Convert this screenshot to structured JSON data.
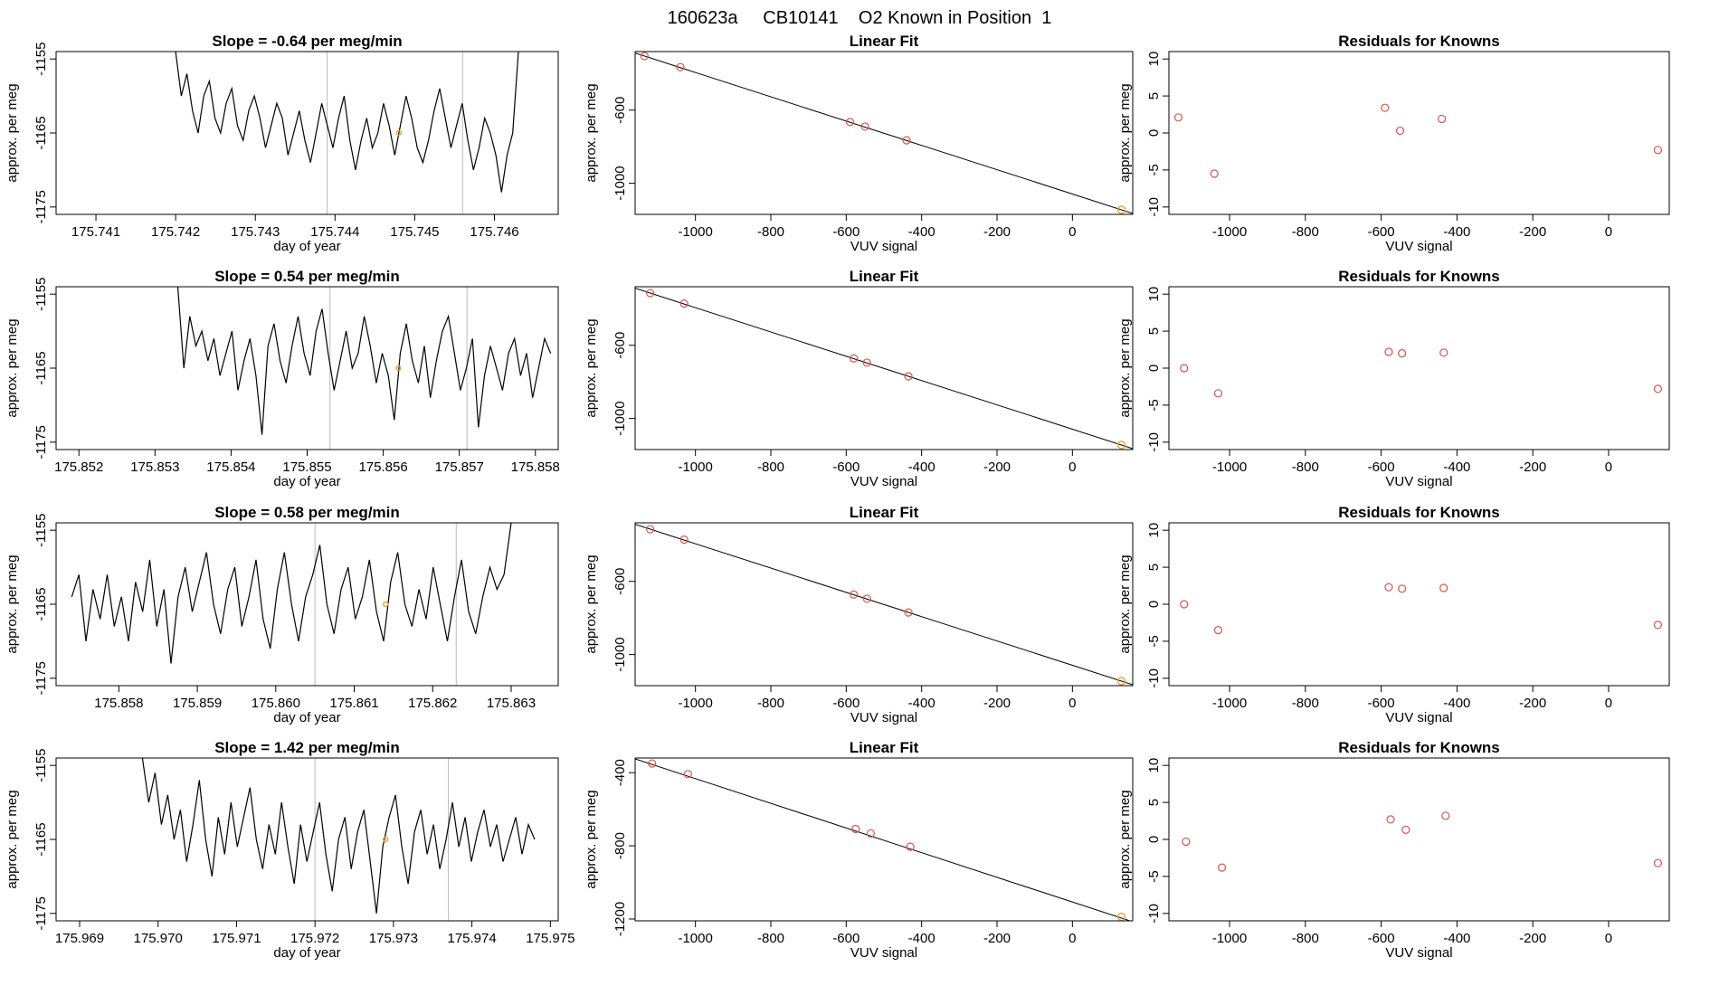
{
  "page_title": "160623a     CB10141    O2 Known in Position  1",
  "colors": {
    "trace": "#000000",
    "marker": "#d9534f",
    "highlight": "#f0a030",
    "guide": "#bbbbbb"
  },
  "chart_data": [
    {
      "type": "line",
      "row": 1,
      "col": 1,
      "title": "Slope =  -0.64  per meg/min",
      "xlabel": "day of year",
      "ylabel": "approx. per meg",
      "xlim": [
        175.7405,
        175.7468
      ],
      "ylim": [
        -1176,
        -1154
      ],
      "xticks": [
        175.741,
        175.742,
        175.743,
        175.744,
        175.745,
        175.746
      ],
      "xtick_labels": [
        "175.741",
        "175.742",
        "175.743",
        "175.744",
        "175.745",
        "175.746"
      ],
      "yticks": [
        -1155,
        -1165,
        -1175
      ],
      "ytick_labels": [
        "-1155",
        "-1165",
        "-1175"
      ],
      "vlines": [
        175.7439,
        175.7456
      ],
      "series": [
        {
          "name": "trace",
          "start": 175.742,
          "end": 175.7463,
          "values": [
            -1154,
            -1160,
            -1157,
            -1162,
            -1165,
            -1160,
            -1158,
            -1163,
            -1165,
            -1161,
            -1159,
            -1164,
            -1166,
            -1162,
            -1160,
            -1163,
            -1167,
            -1164,
            -1161,
            -1163,
            -1168,
            -1165,
            -1162,
            -1166,
            -1169,
            -1165,
            -1161,
            -1164,
            -1167,
            -1163,
            -1160,
            -1166,
            -1170,
            -1166,
            -1163,
            -1167,
            -1165,
            -1161,
            -1164,
            -1168,
            -1164,
            -1160,
            -1163,
            -1167,
            -1169,
            -1166,
            -1162,
            -1159,
            -1163,
            -1167,
            -1164,
            -1161,
            -1166,
            -1170,
            -1167,
            -1163,
            -1165,
            -1168,
            -1173,
            -1168,
            -1165,
            -1154
          ]
        }
      ],
      "highlight_points": [
        {
          "x": 175.7448,
          "y": -1165
        }
      ]
    },
    {
      "type": "scatter",
      "row": 1,
      "col": 2,
      "title": "Linear Fit",
      "xlabel": "VUV signal",
      "ylabel": "approx. per meg",
      "xlim": [
        -1160,
        160
      ],
      "ylim": [
        -1170,
        -280
      ],
      "xticks": [
        -1000,
        -800,
        -600,
        -400,
        -200,
        0
      ],
      "xtick_labels": [
        "-1000",
        "-800",
        "-600",
        "-400",
        "-200",
        "0"
      ],
      "yticks": [
        -600,
        -1000
      ],
      "ytick_labels": [
        "-600",
        "-1000"
      ],
      "fit_line": {
        "x": [
          -1160,
          160
        ],
        "y": [
          -288,
          -1165
        ]
      },
      "points": [
        {
          "x": -1135,
          "y": -305
        },
        {
          "x": -1040,
          "y": -365
        },
        {
          "x": -590,
          "y": -665
        },
        {
          "x": -550,
          "y": -690
        },
        {
          "x": -440,
          "y": -765
        }
      ],
      "highlight_points": [
        {
          "x": 130,
          "y": -1145
        }
      ]
    },
    {
      "type": "scatter",
      "row": 1,
      "col": 3,
      "title": "Residuals for Knowns",
      "xlabel": "VUV signal",
      "ylabel": "approx. per meg",
      "xlim": [
        -1160,
        160
      ],
      "ylim": [
        -11,
        11
      ],
      "xticks": [
        -1000,
        -800,
        -600,
        -400,
        -200,
        0
      ],
      "xtick_labels": [
        "-1000",
        "-800",
        "-600",
        "-400",
        "-200",
        "0"
      ],
      "yticks": [
        10,
        5,
        0,
        -5,
        -10
      ],
      "ytick_labels": [
        "10",
        "5",
        "0",
        "-5",
        "-10"
      ],
      "points": [
        {
          "x": -1135,
          "y": 2.1
        },
        {
          "x": -1040,
          "y": -5.5
        },
        {
          "x": -590,
          "y": 3.4
        },
        {
          "x": -550,
          "y": 0.3
        },
        {
          "x": -440,
          "y": 1.9
        },
        {
          "x": 130,
          "y": -2.3
        }
      ]
    },
    {
      "type": "line",
      "row": 2,
      "col": 1,
      "title": "Slope =  0.54  per meg/min",
      "xlabel": "day of year",
      "ylabel": "approx. per meg",
      "xlim": [
        175.8517,
        175.8583
      ],
      "ylim": [
        -1176,
        -1154
      ],
      "xticks": [
        175.852,
        175.853,
        175.854,
        175.855,
        175.856,
        175.857,
        175.858
      ],
      "xtick_labels": [
        "175.852",
        "175.853",
        "175.854",
        "175.855",
        "175.856",
        "175.857",
        "175.858"
      ],
      "yticks": [
        -1155,
        -1165,
        -1175
      ],
      "ytick_labels": [
        "-1155",
        "-1165",
        "-1175"
      ],
      "vlines": [
        175.8553,
        175.8571
      ],
      "series": [
        {
          "name": "trace",
          "start": 175.8533,
          "end": 175.8582,
          "values": [
            -1154,
            -1165,
            -1158,
            -1162,
            -1160,
            -1164,
            -1161,
            -1166,
            -1163,
            -1160,
            -1168,
            -1164,
            -1161,
            -1166,
            -1174,
            -1162,
            -1159,
            -1164,
            -1167,
            -1162,
            -1158,
            -1163,
            -1166,
            -1160,
            -1157,
            -1163,
            -1168,
            -1164,
            -1160,
            -1165,
            -1163,
            -1158,
            -1162,
            -1167,
            -1163,
            -1166,
            -1172,
            -1163,
            -1159,
            -1164,
            -1167,
            -1162,
            -1169,
            -1164,
            -1160,
            -1158,
            -1163,
            -1168,
            -1165,
            -1161,
            -1173,
            -1166,
            -1162,
            -1165,
            -1168,
            -1163,
            -1161,
            -1166,
            -1163,
            -1169,
            -1165,
            -1161,
            -1163
          ]
        }
      ],
      "highlight_points": [
        {
          "x": 175.8562,
          "y": -1165
        }
      ]
    },
    {
      "type": "scatter",
      "row": 2,
      "col": 2,
      "title": "Linear Fit",
      "xlabel": "VUV signal",
      "ylabel": "approx. per meg",
      "xlim": [
        -1160,
        160
      ],
      "ylim": [
        -1170,
        -280
      ],
      "xticks": [
        -1000,
        -800,
        -600,
        -400,
        -200,
        0
      ],
      "xtick_labels": [
        "-1000",
        "-800",
        "-600",
        "-400",
        "-200",
        "0"
      ],
      "yticks": [
        -600,
        -1000
      ],
      "ytick_labels": [
        "-600",
        "-1000"
      ],
      "fit_line": {
        "x": [
          -1160,
          160
        ],
        "y": [
          -288,
          -1165
        ]
      },
      "points": [
        {
          "x": -1120,
          "y": -315
        },
        {
          "x": -1030,
          "y": -372
        },
        {
          "x": -580,
          "y": -672
        },
        {
          "x": -545,
          "y": -695
        },
        {
          "x": -435,
          "y": -770
        }
      ],
      "highlight_points": [
        {
          "x": 130,
          "y": -1145
        }
      ]
    },
    {
      "type": "scatter",
      "row": 2,
      "col": 3,
      "title": "Residuals for Knowns",
      "xlabel": "VUV signal",
      "ylabel": "approx. per meg",
      "xlim": [
        -1160,
        160
      ],
      "ylim": [
        -11,
        11
      ],
      "xticks": [
        -1000,
        -800,
        -600,
        -400,
        -200,
        0
      ],
      "xtick_labels": [
        "-1000",
        "-800",
        "-600",
        "-400",
        "-200",
        "0"
      ],
      "yticks": [
        10,
        5,
        0,
        -5,
        -10
      ],
      "ytick_labels": [
        "10",
        "5",
        "0",
        "-5",
        "-10"
      ],
      "points": [
        {
          "x": -1120,
          "y": 0.0
        },
        {
          "x": -1030,
          "y": -3.4
        },
        {
          "x": -580,
          "y": 2.2
        },
        {
          "x": -545,
          "y": 2.0
        },
        {
          "x": -435,
          "y": 2.1
        },
        {
          "x": 130,
          "y": -2.8
        }
      ]
    },
    {
      "type": "line",
      "row": 3,
      "col": 1,
      "title": "Slope =  0.58  per meg/min",
      "xlabel": "day of year",
      "ylabel": "approx. per meg",
      "xlim": [
        175.8572,
        175.8636
      ],
      "ylim": [
        -1176,
        -1154
      ],
      "xticks": [
        175.858,
        175.859,
        175.86,
        175.861,
        175.862,
        175.863
      ],
      "xtick_labels": [
        "175.858",
        "175.859",
        "175.860",
        "175.861",
        "175.862",
        "175.863"
      ],
      "yticks": [
        -1155,
        -1165,
        -1175
      ],
      "ytick_labels": [
        "-1155",
        "-1165",
        "-1175"
      ],
      "vlines": [
        175.8605,
        175.8623
      ],
      "series": [
        {
          "name": "trace",
          "start": 175.8574,
          "end": 175.863,
          "values": [
            -1164,
            -1161,
            -1170,
            -1163,
            -1167,
            -1161,
            -1168,
            -1164,
            -1170,
            -1162,
            -1166,
            -1159,
            -1168,
            -1163,
            -1173,
            -1164,
            -1160,
            -1166,
            -1162,
            -1158,
            -1165,
            -1169,
            -1163,
            -1160,
            -1168,
            -1164,
            -1159,
            -1167,
            -1171,
            -1163,
            -1158,
            -1165,
            -1170,
            -1164,
            -1161,
            -1157,
            -1165,
            -1169,
            -1163,
            -1160,
            -1167,
            -1164,
            -1159,
            -1166,
            -1170,
            -1162,
            -1158,
            -1165,
            -1168,
            -1163,
            -1167,
            -1160,
            -1165,
            -1170,
            -1164,
            -1159,
            -1166,
            -1169,
            -1164,
            -1160,
            -1163,
            -1161,
            -1154
          ]
        }
      ],
      "highlight_points": [
        {
          "x": 175.8614,
          "y": -1165
        }
      ]
    },
    {
      "type": "scatter",
      "row": 3,
      "col": 2,
      "title": "Linear Fit",
      "xlabel": "VUV signal",
      "ylabel": "approx. per meg",
      "xlim": [
        -1160,
        160
      ],
      "ylim": [
        -1170,
        -280
      ],
      "xticks": [
        -1000,
        -800,
        -600,
        -400,
        -200,
        0
      ],
      "xtick_labels": [
        "-1000",
        "-800",
        "-600",
        "-400",
        "-200",
        "0"
      ],
      "yticks": [
        -600,
        -1000
      ],
      "ytick_labels": [
        "-600",
        "-1000"
      ],
      "fit_line": {
        "x": [
          -1160,
          160
        ],
        "y": [
          -288,
          -1165
        ]
      },
      "points": [
        {
          "x": -1120,
          "y": -315
        },
        {
          "x": -1030,
          "y": -372
        },
        {
          "x": -580,
          "y": -672
        },
        {
          "x": -545,
          "y": -695
        },
        {
          "x": -435,
          "y": -770
        }
      ],
      "highlight_points": [
        {
          "x": 130,
          "y": -1145
        }
      ]
    },
    {
      "type": "scatter",
      "row": 3,
      "col": 3,
      "title": "Residuals for Knowns",
      "xlabel": "VUV signal",
      "ylabel": "approx. per meg",
      "xlim": [
        -1160,
        160
      ],
      "ylim": [
        -11,
        11
      ],
      "xticks": [
        -1000,
        -800,
        -600,
        -400,
        -200,
        0
      ],
      "xtick_labels": [
        "-1000",
        "-800",
        "-600",
        "-400",
        "-200",
        "0"
      ],
      "yticks": [
        10,
        5,
        0,
        -5,
        -10
      ],
      "ytick_labels": [
        "10",
        "5",
        "0",
        "-5",
        "-10"
      ],
      "points": [
        {
          "x": -1120,
          "y": 0.0
        },
        {
          "x": -1030,
          "y": -3.5
        },
        {
          "x": -580,
          "y": 2.3
        },
        {
          "x": -545,
          "y": 2.1
        },
        {
          "x": -435,
          "y": 2.2
        },
        {
          "x": 130,
          "y": -2.8
        }
      ]
    },
    {
      "type": "line",
      "row": 4,
      "col": 1,
      "title": "Slope =  1.42  per meg/min",
      "xlabel": "day of year",
      "ylabel": "approx. per meg",
      "xlim": [
        175.9687,
        175.9751
      ],
      "ylim": [
        -1176,
        -1154
      ],
      "xticks": [
        175.969,
        175.97,
        175.971,
        175.972,
        175.973,
        175.974,
        175.975
      ],
      "xtick_labels": [
        "175.969",
        "175.970",
        "175.971",
        "175.972",
        "175.973",
        "175.974",
        "175.975"
      ],
      "yticks": [
        -1155,
        -1165,
        -1175
      ],
      "ytick_labels": [
        "-1155",
        "-1165",
        "-1175"
      ],
      "vlines": [
        175.972,
        175.9737
      ],
      "series": [
        {
          "name": "trace",
          "start": 175.9698,
          "end": 175.9748,
          "values": [
            -1154,
            -1160,
            -1156,
            -1163,
            -1159,
            -1165,
            -1161,
            -1168,
            -1163,
            -1157,
            -1165,
            -1170,
            -1162,
            -1167,
            -1160,
            -1166,
            -1162,
            -1158,
            -1165,
            -1169,
            -1163,
            -1167,
            -1160,
            -1166,
            -1171,
            -1163,
            -1168,
            -1164,
            -1160,
            -1167,
            -1172,
            -1165,
            -1162,
            -1169,
            -1164,
            -1161,
            -1168,
            -1175,
            -1166,
            -1162,
            -1159,
            -1166,
            -1171,
            -1164,
            -1161,
            -1167,
            -1163,
            -1169,
            -1165,
            -1160,
            -1166,
            -1162,
            -1168,
            -1164,
            -1161,
            -1166,
            -1163,
            -1168,
            -1165,
            -1162,
            -1167,
            -1163,
            -1165
          ]
        }
      ],
      "highlight_points": [
        {
          "x": 175.9729,
          "y": -1165
        }
      ]
    },
    {
      "type": "scatter",
      "row": 4,
      "col": 2,
      "title": "Linear Fit",
      "xlabel": "VUV signal",
      "ylabel": "approx. per meg",
      "xlim": [
        -1160,
        160
      ],
      "ylim": [
        -1210,
        -320
      ],
      "xticks": [
        -1000,
        -800,
        -600,
        -400,
        -200,
        0
      ],
      "xtick_labels": [
        "-1000",
        "-800",
        "-600",
        "-400",
        "-200",
        "0"
      ],
      "yticks": [
        -400,
        -800,
        -1200
      ],
      "ytick_labels": [
        "-400",
        "-800",
        "-1200"
      ],
      "fit_line": {
        "x": [
          -1160,
          160
        ],
        "y": [
          -325,
          -1215
        ]
      },
      "points": [
        {
          "x": -1115,
          "y": -350
        },
        {
          "x": -1020,
          "y": -408
        },
        {
          "x": -575,
          "y": -708
        },
        {
          "x": -535,
          "y": -732
        },
        {
          "x": -430,
          "y": -805
        }
      ],
      "highlight_points": [
        {
          "x": 130,
          "y": -1188
        }
      ]
    },
    {
      "type": "scatter",
      "row": 4,
      "col": 3,
      "title": "Residuals for Knowns",
      "xlabel": "VUV signal",
      "ylabel": "approx. per meg",
      "xlim": [
        -1160,
        160
      ],
      "ylim": [
        -11,
        11
      ],
      "xticks": [
        -1000,
        -800,
        -600,
        -400,
        -200,
        0
      ],
      "xtick_labels": [
        "-1000",
        "-800",
        "-600",
        "-400",
        "-200",
        "0"
      ],
      "yticks": [
        10,
        5,
        0,
        -5,
        -10
      ],
      "ytick_labels": [
        "10",
        "5",
        "0",
        "-5",
        "-10"
      ],
      "points": [
        {
          "x": -1115,
          "y": -0.3
        },
        {
          "x": -1020,
          "y": -3.8
        },
        {
          "x": -575,
          "y": 2.7
        },
        {
          "x": -535,
          "y": 1.3
        },
        {
          "x": -430,
          "y": 3.2
        },
        {
          "x": 130,
          "y": -3.2
        }
      ]
    }
  ]
}
